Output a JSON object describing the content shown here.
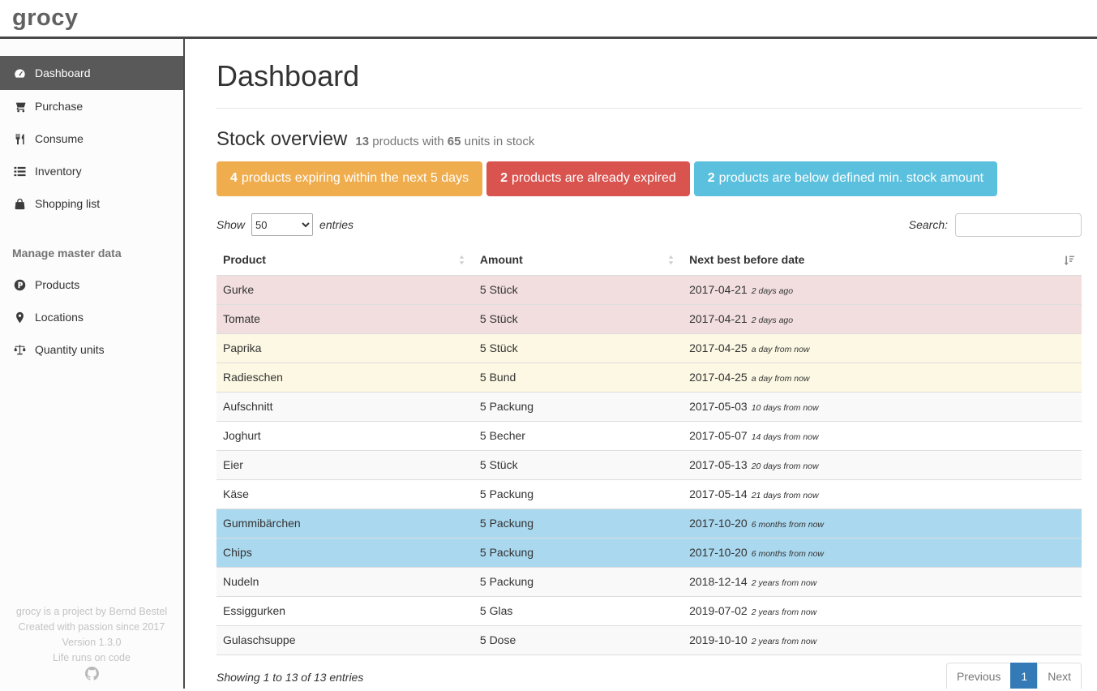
{
  "topbar": {
    "logo": "grocy"
  },
  "sidebar": {
    "items": [
      {
        "label": "Dashboard",
        "icon": "tachometer-icon",
        "active": true
      },
      {
        "label": "Purchase",
        "icon": "cart-icon"
      },
      {
        "label": "Consume",
        "icon": "cutlery-icon"
      },
      {
        "label": "Inventory",
        "icon": "list-icon"
      },
      {
        "label": "Shopping list",
        "icon": "shopping-bag-icon"
      }
    ],
    "section_heading": "Manage master data",
    "master_items": [
      {
        "label": "Products",
        "icon": "product-hunt-icon"
      },
      {
        "label": "Locations",
        "icon": "map-marker-icon"
      },
      {
        "label": "Quantity units",
        "icon": "balance-scale-icon"
      }
    ],
    "footer_lines": [
      "grocy is a project by Bernd Bestel",
      "Created with passion since 2017",
      "Version 1.3.0",
      "Life runs on code"
    ],
    "footer_icon": "github-icon"
  },
  "main": {
    "page_title": "Dashboard",
    "stock_overview": {
      "title": "Stock overview",
      "products_count": "13",
      "text_mid": "products with",
      "units_count": "65",
      "text_end": "units in stock"
    },
    "badges": [
      {
        "count": "4",
        "text": "products expiring within the next 5 days",
        "color": "#f0ad4e"
      },
      {
        "count": "2",
        "text": "products are already expired",
        "color": "#d9534f"
      },
      {
        "count": "2",
        "text": "products are below defined min. stock amount",
        "color": "#5bc0de"
      }
    ],
    "table_controls": {
      "show_label": "Show",
      "entries_value": "50",
      "entries_label": "entries",
      "search_label": "Search:",
      "search_value": ""
    },
    "table": {
      "columns": [
        {
          "label": "Product",
          "sort": "none"
        },
        {
          "label": "Amount",
          "sort": "none"
        },
        {
          "label": "Next best before date",
          "sort": "asc"
        }
      ],
      "rows": [
        {
          "product": "Gurke",
          "amount": "5 Stück",
          "date": "2017-04-21",
          "timeago": "2 days ago",
          "status": "expired"
        },
        {
          "product": "Tomate",
          "amount": "5 Stück",
          "date": "2017-04-21",
          "timeago": "2 days ago",
          "status": "expired"
        },
        {
          "product": "Paprika",
          "amount": "5 Stück",
          "date": "2017-04-25",
          "timeago": "a day from now",
          "status": "expiring"
        },
        {
          "product": "Radieschen",
          "amount": "5 Bund",
          "date": "2017-04-25",
          "timeago": "a day from now",
          "status": "expiring"
        },
        {
          "product": "Aufschnitt",
          "amount": "5 Packung",
          "date": "2017-05-03",
          "timeago": "10 days from now",
          "status": "normal"
        },
        {
          "product": "Joghurt",
          "amount": "5 Becher",
          "date": "2017-05-07",
          "timeago": "14 days from now",
          "status": "normal"
        },
        {
          "product": "Eier",
          "amount": "5 Stück",
          "date": "2017-05-13",
          "timeago": "20 days from now",
          "status": "normal"
        },
        {
          "product": "Käse",
          "amount": "5 Packung",
          "date": "2017-05-14",
          "timeago": "21 days from now",
          "status": "normal"
        },
        {
          "product": "Gummibärchen",
          "amount": "5 Packung",
          "date": "2017-10-20",
          "timeago": "6 months from now",
          "status": "below-min"
        },
        {
          "product": "Chips",
          "amount": "5 Packung",
          "date": "2017-10-20",
          "timeago": "6 months from now",
          "status": "below-min"
        },
        {
          "product": "Nudeln",
          "amount": "5 Packung",
          "date": "2018-12-14",
          "timeago": "2 years from now",
          "status": "normal"
        },
        {
          "product": "Essiggurken",
          "amount": "5 Glas",
          "date": "2019-07-02",
          "timeago": "2 years from now",
          "status": "normal"
        },
        {
          "product": "Gulaschsuppe",
          "amount": "5 Dose",
          "date": "2019-10-10",
          "timeago": "2 years from now",
          "status": "normal"
        }
      ]
    },
    "table_footer": {
      "info": "Showing 1 to 13 of 13 entries",
      "pagination": {
        "previous": "Previous",
        "page": "1",
        "next": "Next"
      }
    }
  },
  "colors": {
    "accent_blue": "#337ab7",
    "badge_warning": "#f0ad4e",
    "badge_danger": "#d9534f",
    "badge_info": "#5bc0de",
    "row_expired": "#f2dede",
    "row_expiring": "#fcf8e3",
    "row_below_min": "#aad8ee",
    "sidebar_active": "#595959"
  }
}
